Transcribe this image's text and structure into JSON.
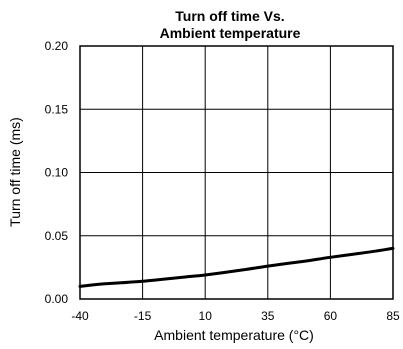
{
  "chart_data": {
    "type": "line",
    "title_lines": [
      "Turn off time Vs.",
      "Ambient temperature"
    ],
    "xlabel": "Ambient temperature (°C)",
    "ylabel": "Turn off time  (ms)",
    "xticks": [
      -40,
      -15,
      10,
      35,
      60,
      85
    ],
    "yticks": [
      0.0,
      0.05,
      0.1,
      0.15,
      0.2
    ],
    "xtick_labels": [
      "-40",
      "-15",
      "10",
      "35",
      "60",
      "85"
    ],
    "ytick_labels": [
      "0.00",
      "0.05",
      "0.10",
      "0.15",
      "0.20"
    ],
    "xlim": [
      -40,
      85
    ],
    "ylim": [
      0,
      0.2
    ],
    "grid": true,
    "series": [
      {
        "x": [
          -40,
          -30,
          -15,
          0,
          10,
          25,
          35,
          50,
          60,
          75,
          85
        ],
        "y": [
          0.01,
          0.012,
          0.014,
          0.017,
          0.019,
          0.023,
          0.026,
          0.03,
          0.033,
          0.037,
          0.04
        ]
      }
    ]
  }
}
